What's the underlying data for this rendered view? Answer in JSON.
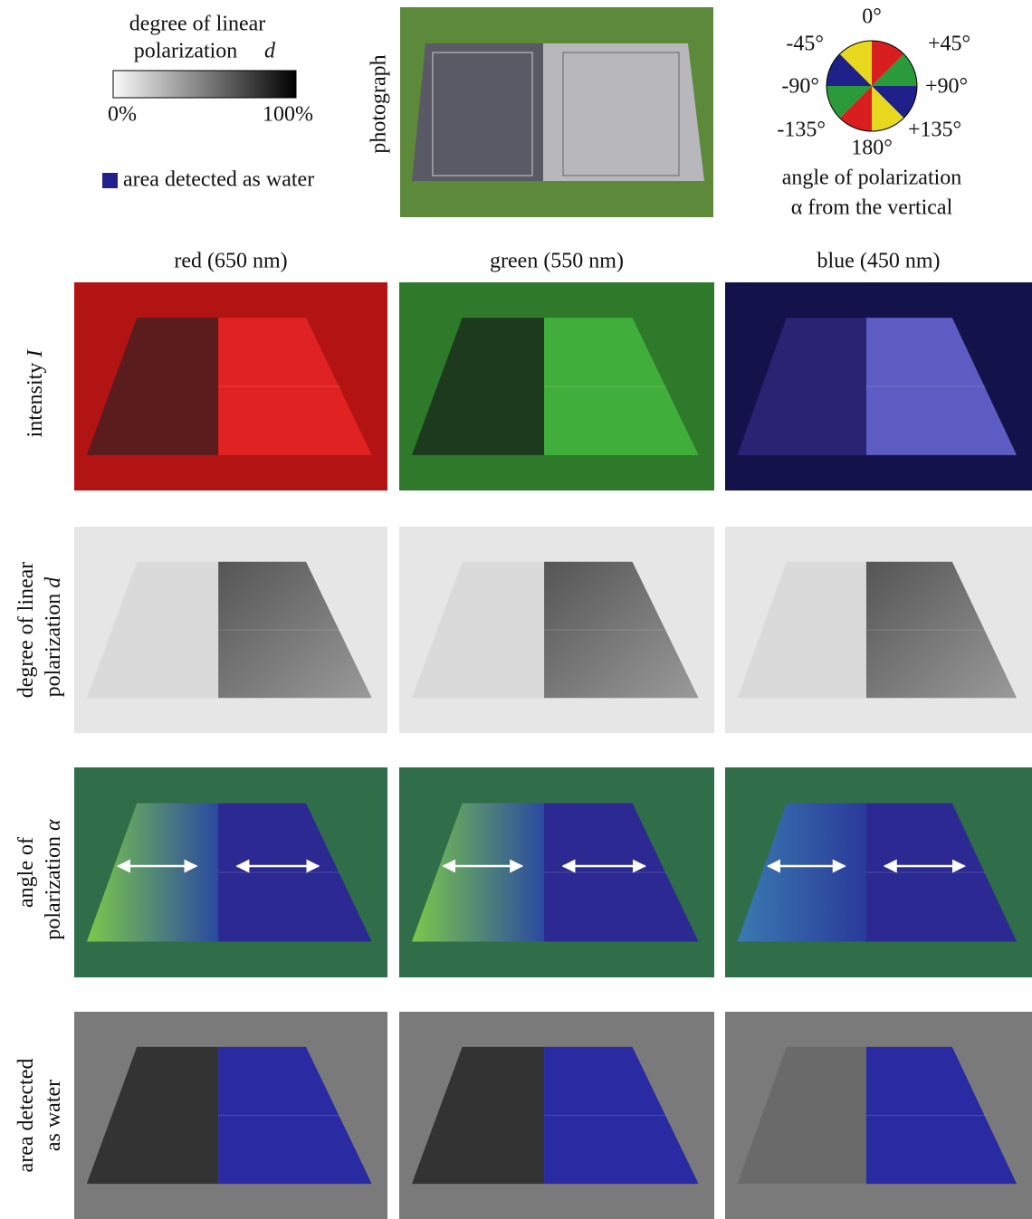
{
  "legend_d": {
    "lines": [
      "degree of linear",
      "polarization"
    ],
    "symbol": "d",
    "min_label": "0%",
    "max_label": "100%"
  },
  "legend_water": "area detected as water",
  "photo_label": "photograph",
  "legend_angle": {
    "ticks": [
      "0°",
      "+45°",
      "+90°",
      "+135°",
      "180°",
      "-135°",
      "-90°",
      "-45°"
    ],
    "caption": [
      "angle of polarization",
      "α from the vertical"
    ]
  },
  "columns": [
    "red (650 nm)",
    "green (550 nm)",
    "blue (450 nm)"
  ],
  "rows": [
    {
      "lines": [
        "intensity"
      ],
      "symbol": "I"
    },
    {
      "lines": [
        "degree of linear",
        "polarization"
      ],
      "symbol": "d"
    },
    {
      "lines": [
        "angle of",
        "polarization"
      ],
      "symbol": "α"
    },
    {
      "lines": [
        "area detected",
        "as water"
      ],
      "symbol": null
    }
  ]
}
